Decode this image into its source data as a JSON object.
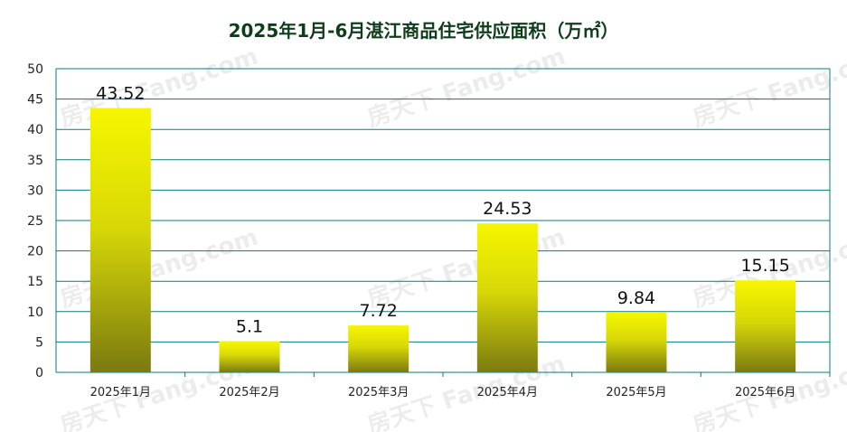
{
  "chart_data": {
    "type": "bar",
    "title": "2025年1月-6月湛江商品住宅供应面积（万㎡）",
    "categories": [
      "2025年1月",
      "2025年2月",
      "2025年3月",
      "2025年4月",
      "2025年5月",
      "2025年6月"
    ],
    "values": [
      43.52,
      5.1,
      7.72,
      24.53,
      9.84,
      15.15
    ],
    "value_labels": [
      "43.52",
      "5.1",
      "7.72",
      "24.53",
      "9.84",
      "15.15"
    ],
    "y_ticks": [
      "0",
      "5",
      "10",
      "15",
      "20",
      "25",
      "30",
      "35",
      "40",
      "45",
      "50"
    ],
    "ylim": [
      0,
      50
    ],
    "xlabel": "",
    "ylabel": "",
    "grid": true,
    "colors": {
      "bar_top": "#f6f600",
      "bar_bottom": "#7a7a10",
      "grid": "#0b7a7a",
      "axis": "#0b7a7a",
      "title": "#0f3d1c"
    }
  },
  "watermark": "房天下 Fang.com"
}
